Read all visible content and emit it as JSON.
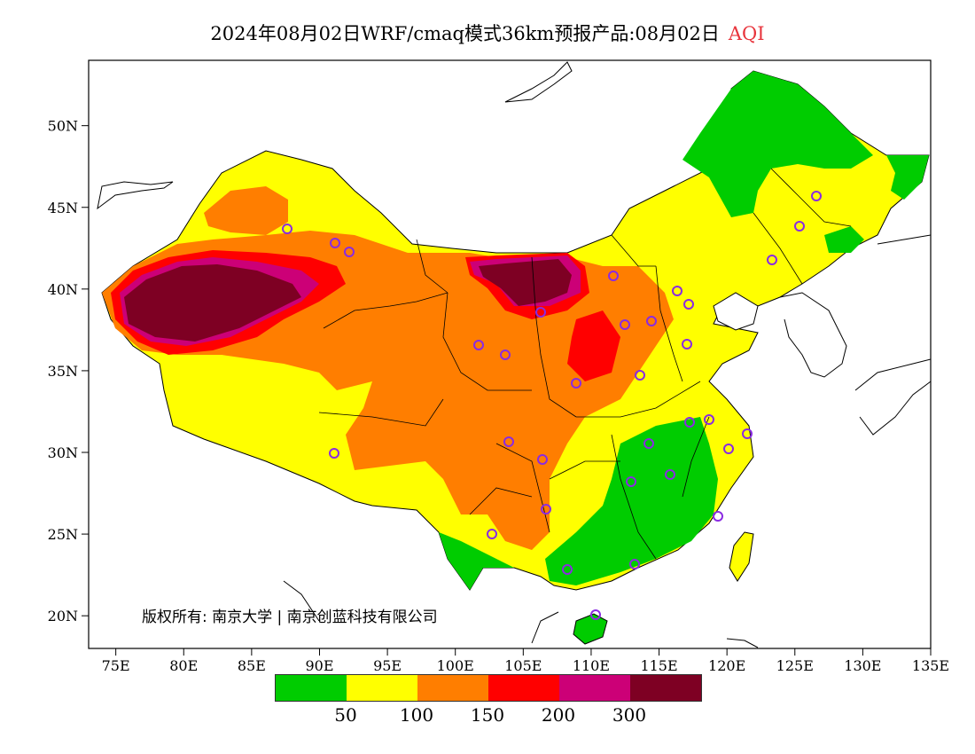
{
  "title": {
    "main": "2024年08月02日WRF/cmaq模式36km预报产品:08月02日",
    "variable": "AQI"
  },
  "map": {
    "lon_range": [
      73,
      135
    ],
    "lat_range": [
      18,
      54
    ],
    "x_ticks": [
      "75E",
      "80E",
      "85E",
      "90E",
      "95E",
      "100E",
      "105E",
      "110E",
      "115E",
      "120E",
      "125E",
      "130E",
      "135E"
    ],
    "y_ticks": [
      "20N",
      "25N",
      "30N",
      "35N",
      "40N",
      "45N",
      "50N"
    ],
    "station_color": "#8a2be2"
  },
  "copyright": "版权所有: 南京大学 | 南京创蓝科技有限公司",
  "legend": {
    "colors": [
      "#00cc00",
      "#ffff00",
      "#ff7e00",
      "#ff0000",
      "#cc0077",
      "#7e0023"
    ],
    "labels": [
      "50",
      "100",
      "150",
      "200",
      "300"
    ]
  }
}
